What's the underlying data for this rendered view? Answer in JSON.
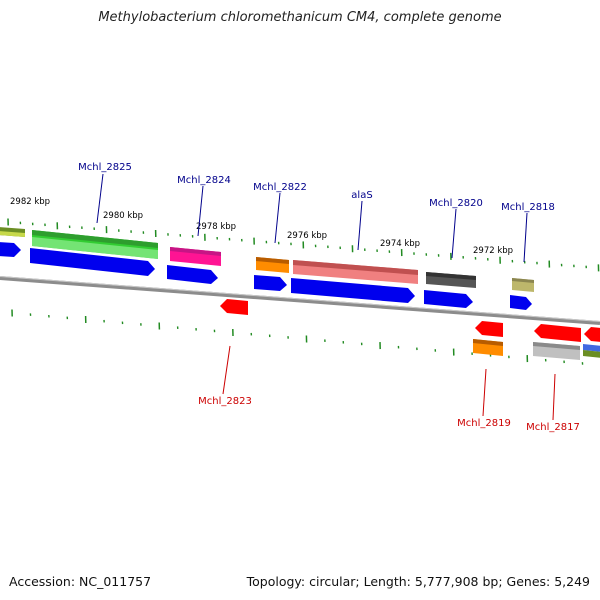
{
  "title": "Methylobacterium chloromethanicum CM4, complete genome",
  "footer": {
    "accession": "Accession: NC_011757",
    "topology": "Topology: circular; Length: 5,777,908 bp; Genes: 5,249"
  },
  "colors": {
    "backbone": "#8c8c8c",
    "tick": "#228b22",
    "cds": "#0000ee",
    "label_forward": "#00008b",
    "label_reverse": "#cc0000",
    "scale_text": "#000000"
  },
  "scale_labels": [
    "2982 kbp",
    "2980 kbp",
    "2978 kbp",
    "2976 kbp",
    "2974 kbp",
    "2972 kbp"
  ],
  "forward_gene_labels": [
    "Mchl_2825",
    "Mchl_2824",
    "Mchl_2822",
    "alaS",
    "Mchl_2820",
    "Mchl_2818"
  ],
  "reverse_gene_labels": [
    "Mchl_2823",
    "Mchl_2819",
    "Mchl_2817"
  ],
  "feature_colors": {
    "forward_top": [
      "#6b8e23",
      "#32cd32",
      "#ff1493",
      "#ff8c00",
      "#f08080",
      "#555555",
      "#bdb76b"
    ],
    "reverse": [
      "#ff0000",
      "#ff0000",
      "#ff8c00",
      "#ff0000",
      "#c0c0c0",
      "#ff0000",
      "#6b8e23",
      "#4169e1"
    ]
  }
}
